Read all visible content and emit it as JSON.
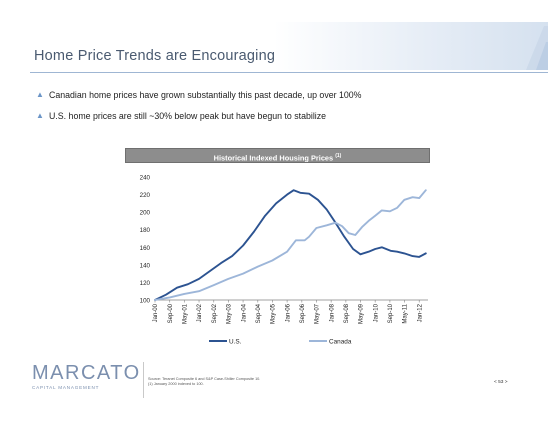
{
  "slide": {
    "title": "Home Price Trends are Encouraging",
    "bullets": [
      "Canadian home prices have grown substantially this past decade, up over 100%",
      "U.S. home prices are still ~30% below peak but have begun to stabilize"
    ],
    "bullet_icon": "triangle-bullet-icon",
    "chart_header": "Historical Indexed Housing Prices",
    "chart_header_note": "(1)",
    "logo_main": "MARCATO",
    "logo_sub": "CAPITAL MANAGEMENT",
    "footer_source": "Source: Teranet Composite 6 and S&P Case-Shiller Composite 10.",
    "footer_note": "(1)     January 2000 indexed to 100.",
    "page_number": "< 53 >",
    "colors": {
      "accent": "#6c95c7",
      "title": "#4a5a70",
      "us_line": "#2c5391",
      "canada_line": "#9db6d9",
      "chart_header_bg": "#8d8d8d"
    }
  },
  "chart_data": {
    "type": "line",
    "title": "Historical Indexed Housing Prices (1)",
    "ylim": [
      100,
      240
    ],
    "yticks": [
      100,
      120,
      140,
      160,
      180,
      200,
      220,
      240
    ],
    "xlim": [
      2000.0,
      2012.4
    ],
    "xticks": [
      {
        "label": "Jan-00",
        "x": 2000.0
      },
      {
        "label": "Sep-00",
        "x": 2000.67
      },
      {
        "label": "May-01",
        "x": 2001.33
      },
      {
        "label": "Jan-02",
        "x": 2002.0
      },
      {
        "label": "Sep-02",
        "x": 2002.67
      },
      {
        "label": "May-03",
        "x": 2003.33
      },
      {
        "label": "Jan-04",
        "x": 2004.0
      },
      {
        "label": "Sep-04",
        "x": 2004.67
      },
      {
        "label": "May-05",
        "x": 2005.33
      },
      {
        "label": "Jan-06",
        "x": 2006.0
      },
      {
        "label": "Sep-06",
        "x": 2006.67
      },
      {
        "label": "May-07",
        "x": 2007.33
      },
      {
        "label": "Jan-08",
        "x": 2008.0
      },
      {
        "label": "Sep-08",
        "x": 2008.67
      },
      {
        "label": "May-09",
        "x": 2009.33
      },
      {
        "label": "Jan-10",
        "x": 2010.0
      },
      {
        "label": "Sep-10",
        "x": 2010.67
      },
      {
        "label": "May-11",
        "x": 2011.33
      },
      {
        "label": "Jan-12",
        "x": 2012.0
      }
    ],
    "legend": "bottom",
    "series": [
      {
        "name": "U.S.",
        "color": "#2c5391",
        "points": [
          [
            2000.0,
            100
          ],
          [
            2000.5,
            106
          ],
          [
            2001.0,
            114
          ],
          [
            2001.5,
            118
          ],
          [
            2002.0,
            124
          ],
          [
            2002.5,
            133
          ],
          [
            2003.0,
            142
          ],
          [
            2003.5,
            150
          ],
          [
            2004.0,
            162
          ],
          [
            2004.5,
            178
          ],
          [
            2005.0,
            196
          ],
          [
            2005.5,
            210
          ],
          [
            2006.0,
            220
          ],
          [
            2006.3,
            225
          ],
          [
            2006.6,
            222
          ],
          [
            2007.0,
            221
          ],
          [
            2007.4,
            214
          ],
          [
            2007.8,
            203
          ],
          [
            2008.2,
            188
          ],
          [
            2008.6,
            172
          ],
          [
            2009.0,
            158
          ],
          [
            2009.33,
            152
          ],
          [
            2009.7,
            155
          ],
          [
            2010.0,
            158
          ],
          [
            2010.3,
            160
          ],
          [
            2010.7,
            156
          ],
          [
            2011.0,
            155
          ],
          [
            2011.33,
            153
          ],
          [
            2011.7,
            150
          ],
          [
            2012.0,
            149
          ],
          [
            2012.3,
            153
          ]
        ]
      },
      {
        "name": "Canada",
        "color": "#9db6d9",
        "points": [
          [
            2000.0,
            100
          ],
          [
            2000.67,
            103
          ],
          [
            2001.33,
            107
          ],
          [
            2002.0,
            110
          ],
          [
            2002.67,
            117
          ],
          [
            2003.33,
            124
          ],
          [
            2004.0,
            130
          ],
          [
            2004.67,
            138
          ],
          [
            2005.33,
            145
          ],
          [
            2006.0,
            155
          ],
          [
            2006.4,
            168
          ],
          [
            2006.8,
            168
          ],
          [
            2007.0,
            172
          ],
          [
            2007.33,
            182
          ],
          [
            2007.8,
            185
          ],
          [
            2008.2,
            188
          ],
          [
            2008.5,
            184
          ],
          [
            2008.8,
            176
          ],
          [
            2009.1,
            174
          ],
          [
            2009.4,
            183
          ],
          [
            2009.7,
            190
          ],
          [
            2010.0,
            196
          ],
          [
            2010.3,
            202
          ],
          [
            2010.67,
            201
          ],
          [
            2011.0,
            205
          ],
          [
            2011.33,
            214
          ],
          [
            2011.7,
            217
          ],
          [
            2012.0,
            216
          ],
          [
            2012.3,
            225
          ]
        ]
      }
    ]
  }
}
